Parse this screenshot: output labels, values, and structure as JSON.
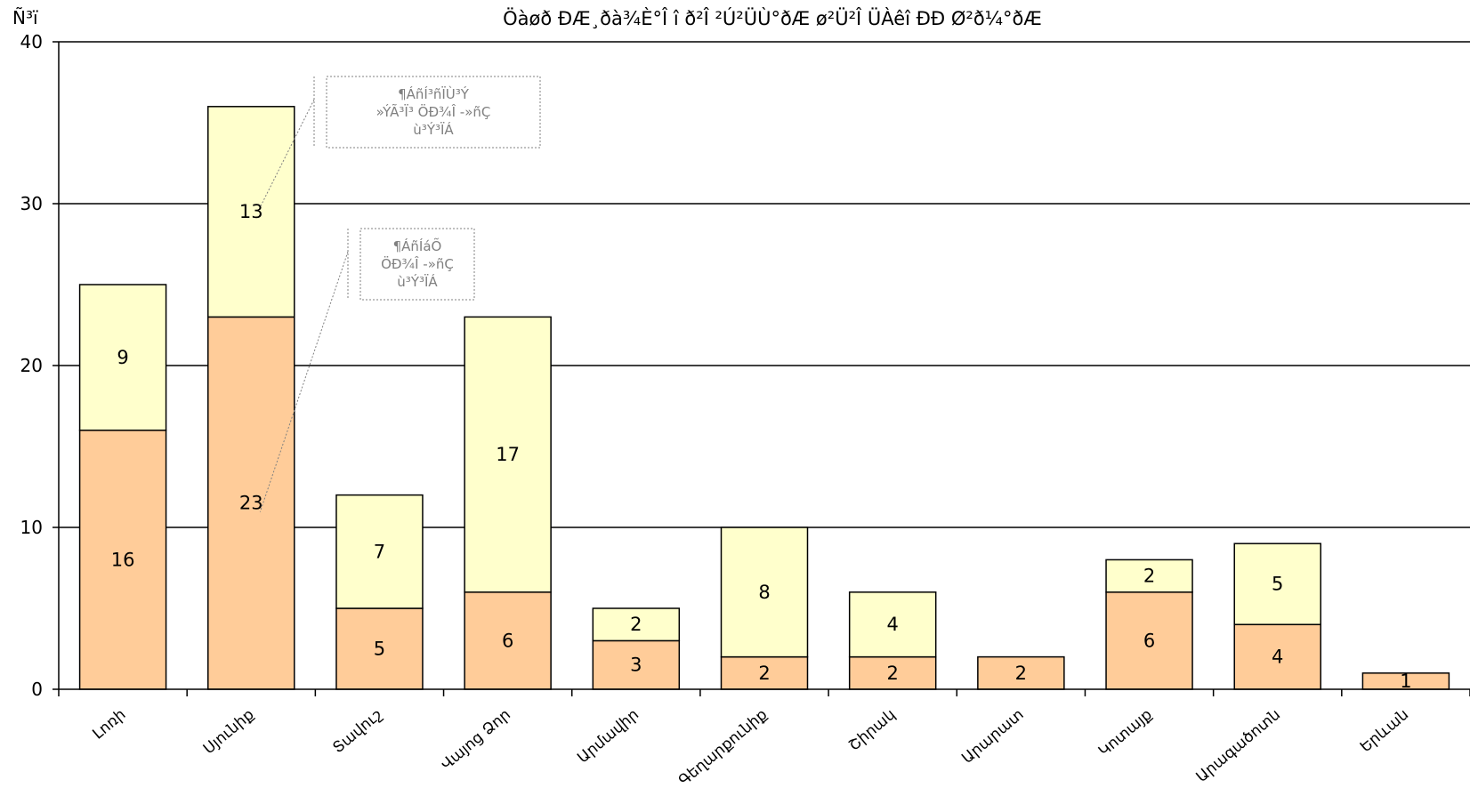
{
  "chart_data": {
    "type": "bar",
    "stacked": true,
    "title": "Öàøð ÐÆ¸ðà¾È°Î î ð²Î ²Ú²ÜÙ°ðÆ ø²Ü²Î ÜÀêî ÐÐ Ø²ð¼°ðÆ",
    "ylabel": "Ñ³ï",
    "ylim": [
      0,
      40
    ],
    "yticks": [
      0,
      10,
      20,
      30,
      40
    ],
    "grid": true,
    "categories": [
      "Լոռի",
      "Սյունիք",
      "Տավուշ",
      "Վայոց Ձոր",
      "Արմավիր",
      "Գեղարքունիք",
      "Շիրակ",
      "Արարատ",
      "Կոտայք",
      "Արագածոտն",
      "Երևան"
    ],
    "series": [
      {
        "values": [
          16,
          23,
          5,
          6,
          3,
          2,
          2,
          2,
          6,
          4,
          1
        ],
        "color": "#FFCC99"
      },
      {
        "values": [
          9,
          13,
          7,
          17,
          2,
          8,
          4,
          0,
          2,
          5,
          0
        ],
        "color": "#FFFFCC"
      }
    ],
    "annotations": [
      {
        "lines": [
          "¶ÁñÍ³ñÏÙ³Ý",
          "»ÝÃ³Ï³ ÖÐ¾Î -»ñÇ",
          "ù³Ý³ÏÁ"
        ]
      },
      {
        "lines": [
          "¶ÁñÍáÕ",
          "ÖÐ¾Î -»ñÇ",
          "ù³Ý³ÏÁ"
        ]
      }
    ]
  }
}
